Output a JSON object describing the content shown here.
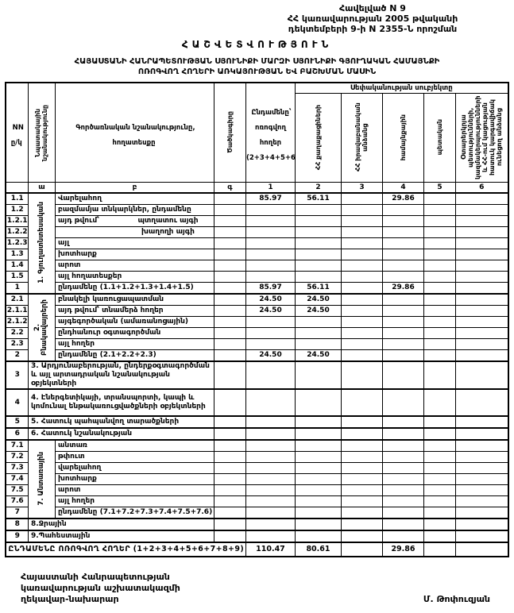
{
  "header": {
    "appendix_lines": [
      "Հավելված N 9",
      "ՀՀ կառավարության 2005 թվականի",
      "դեկտեմբերի 9-ի N 2355-Ն որոշման"
    ],
    "title": "ՀԱՇՎԵՏՎՈՒԹՅՈՒՆ",
    "subtitle_lines": [
      "ՀԱՅԱՍՏԱՆԻ ՀԱՆՐԱՊԵՏՈՒԹՅԱՆ ՍՅՈՒՆԻՔԻ ՄԱՐԶԻ ՍՅՈՒՆԻՔԻ ԳՅՈՒՂԱԿԱՆ ՀԱՄԱՅՆՔԻ",
      "ՈՌՈԳՎՈՂ ՀՈՂԵՐԻ ԱՌԿԱՅՈՒԹՅԱՆ ԵՎ ԲԱՇԽՄԱՆ ՄԱՍԻՆ"
    ]
  },
  "table": {
    "col_headers": {
      "nn": "NN ը/կ",
      "purpose": "Նպատակային նշանակությունը",
      "functional": "Գործառնական նշանակությունը, հողատեսքը",
      "code": "Ծածկագիրը",
      "total": "Ընդամենը՝ ոռոգվող հողեր (2+3+4+5+6)",
      "ownership_group": "Սեփականության սուբյեկտը",
      "owners": [
        "ՀՀ քաղաքացիների",
        "ՀՀ իրավաբանական անձանց",
        "համայնքային",
        "պետական",
        "Օտարերկրյա պետությունների, կազմակերպությունների և ՀՀ-ում կացության հատուկ կարգավիճակ ունեցող անձանց"
      ]
    },
    "letter_row": [
      "",
      "ա",
      "բ",
      "գ",
      "1",
      "2",
      "3",
      "4",
      "5",
      "6"
    ],
    "rows": [
      {
        "no": "1.1",
        "group": "1. Գյուղատնտեսական",
        "group_span": 9,
        "label": "Վարելահող",
        "values": [
          "85.97",
          "56.11",
          "",
          "29.86",
          "",
          ""
        ],
        "thick": true
      },
      {
        "no": "1.2",
        "label": "բազմամյա տնկարկներ, ընդամենը"
      },
      {
        "no": "1.2.1",
        "kind": "split",
        "split_left": "այդ թվում՝",
        "split_right": "պտղատու այգի"
      },
      {
        "no": "1.2.2",
        "kind": "split",
        "split_left": "",
        "split_right": "խաղողի այգի"
      },
      {
        "no": "1.2.3",
        "label": "այլ"
      },
      {
        "no": "1.3",
        "label": "խոտհարք"
      },
      {
        "no": "1.4",
        "label": "արոտ"
      },
      {
        "no": "1.5",
        "label": "այլ հողատեսքեր"
      },
      {
        "no": "1",
        "label": "ընդամենը (1.1+1.2+1.3+1.4+1.5)",
        "values": [
          "85.97",
          "56.11",
          "",
          "29.86",
          "",
          ""
        ]
      },
      {
        "no": "2.1",
        "group": "2. Բնակավայրերի",
        "group_span": 6,
        "label": "բնակելի կառուցապատման",
        "values": [
          "24.50",
          "24.50",
          "",
          "",
          "",
          ""
        ],
        "thick": true
      },
      {
        "no": "2.1.1",
        "label": "այդ թվում՝ տնամերձ հողեր",
        "values": [
          "24.50",
          "24.50",
          "",
          "",
          "",
          ""
        ]
      },
      {
        "no": "2.1.2",
        "label": "այգեգործական (ամառանոցային)"
      },
      {
        "no": "2.2",
        "label": "ընդհանուր օգտագործման"
      },
      {
        "no": "2.3",
        "label": "այլ հողեր"
      },
      {
        "no": "2",
        "label": "ընդամենը (2.1+2.2+2.3)",
        "values": [
          "24.50",
          "24.50",
          "",
          "",
          "",
          ""
        ]
      },
      {
        "no": "3",
        "kind": "wide",
        "label": "3. Արդյունաբերության, ընդերքօգտագործման և այլ արտադրական նշանակության օբյեկտների",
        "tall": true,
        "thick": true
      },
      {
        "no": "4",
        "kind": "wide",
        "label": "4. Էներգետիկայի, տրանսպորտի, կապի և կոմունալ ենթակառուցվածքների օբյեկտների",
        "tall": true,
        "thick": true
      },
      {
        "no": "5",
        "kind": "wide",
        "label": "5. Հատուկ պահպանվող տարածքների",
        "thick": true
      },
      {
        "no": "6",
        "kind": "wide",
        "label": "6. Հատուկ նշանակության",
        "thick": true
      },
      {
        "no": "7.1",
        "group": "7. Անտառային",
        "group_span": 7,
        "label": "անտառ",
        "thick": true
      },
      {
        "no": "7.2",
        "label": "թփուտ"
      },
      {
        "no": "7.3",
        "label": "վարելահող"
      },
      {
        "no": "7.4",
        "label": "խոտհարք"
      },
      {
        "no": "7.5",
        "label": "արոտ"
      },
      {
        "no": "7.6",
        "label": "այլ հողեր"
      },
      {
        "no": "7",
        "label": "ընդամենը (7.1+7.2+7.3+7.4+7.5+7.6)"
      },
      {
        "no": "8",
        "kind": "wide",
        "label": "8.Ջրային",
        "thick": true
      },
      {
        "no": "9",
        "kind": "wide",
        "label": "9.Պահեստային",
        "thick": true
      }
    ],
    "total_row": {
      "label": "ԸՆԴԱՄԵՆԸ ՈՌՈԳՎՈՂ ՀՈՂԵՐ (1+2+3+4+5+6+7+8+9)",
      "values": [
        "110.47",
        "80.61",
        "",
        "29.86",
        "",
        ""
      ]
    }
  },
  "footer": {
    "left_lines": [
      "Հայաստանի Հանրապետության",
      "կառավարության աշխատակազմի",
      "ղեկավար-նախարար"
    ],
    "signature": "Մ. Թոփուզյան"
  }
}
